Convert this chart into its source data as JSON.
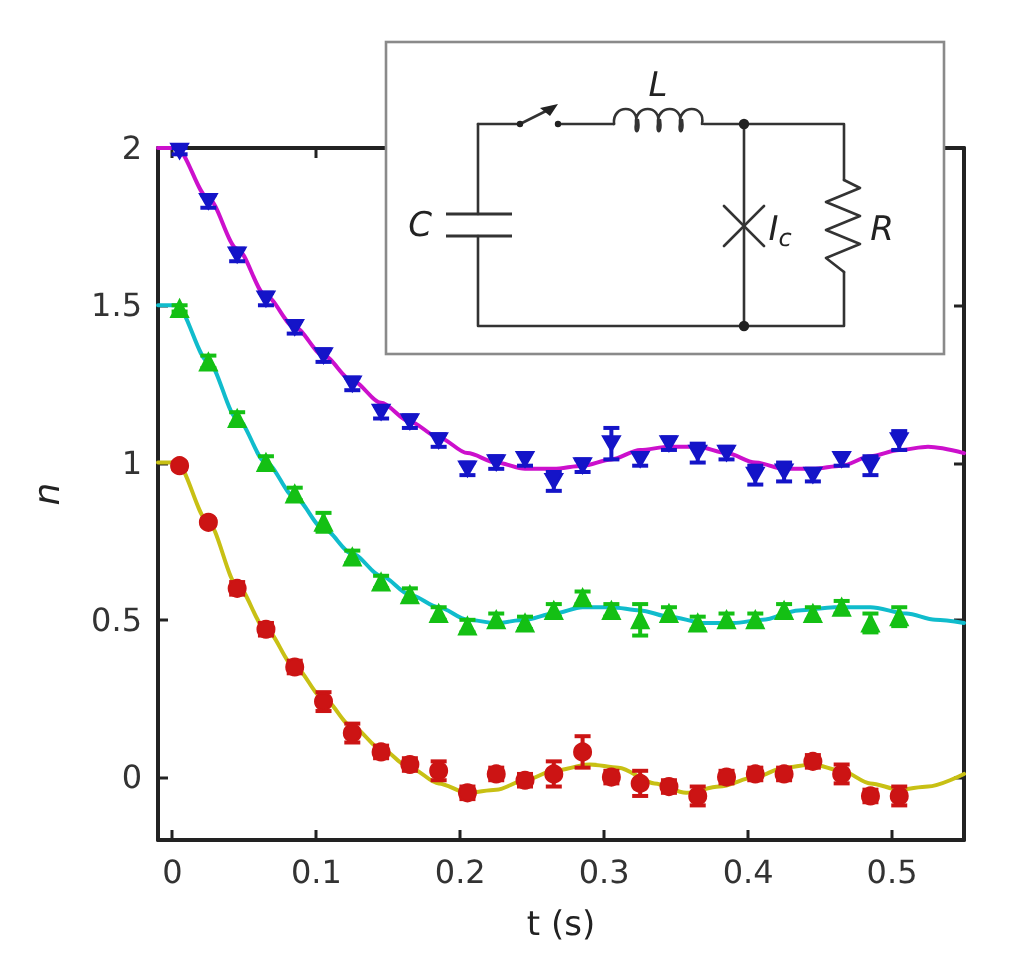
{
  "chart_data": {
    "type": "scatter",
    "xlabel": "t (s)",
    "ylabel": "n",
    "annotations": [
      "L",
      "C",
      "I$_{c}$",
      "R"
    ],
    "x": [
      0.005,
      0.025,
      0.045,
      0.065,
      0.085,
      0.105,
      0.125,
      0.145,
      0.165,
      0.185,
      0.205,
      0.225,
      0.245,
      0.265,
      0.285,
      0.305,
      0.325,
      0.345,
      0.365,
      0.385,
      0.405,
      0.425,
      0.445,
      0.465,
      0.485,
      0.505
    ],
    "xlim": [
      -0.01,
      0.55
    ],
    "xticks": [
      0,
      0.1,
      0.2,
      0.3,
      0.4,
      0.5
    ],
    "ylim": [
      -0.2,
      2
    ],
    "yticks": [
      0,
      0.5,
      1,
      1.5,
      2
    ],
    "series": [
      {
        "marker": "triangle-down",
        "color": "#1414c8",
        "values": [
          1.99,
          1.83,
          1.66,
          1.52,
          1.43,
          1.34,
          1.25,
          1.16,
          1.13,
          1.07,
          0.98,
          1.0,
          1.01,
          0.94,
          0.99,
          1.06,
          1.01,
          1.06,
          1.03,
          1.03,
          0.96,
          0.97,
          0.96,
          1.01,
          0.99,
          1.07
        ],
        "errors": [
          0.01,
          0.02,
          0.02,
          0.02,
          0.02,
          0.02,
          0.02,
          0.02,
          0.02,
          0.02,
          0.02,
          0.02,
          0.02,
          0.03,
          0.02,
          0.05,
          0.02,
          0.02,
          0.03,
          0.02,
          0.03,
          0.03,
          0.02,
          0.02,
          0.03,
          0.03
        ]
      },
      {
        "type": "line",
        "marker": "none",
        "line_style": "solid",
        "color": "#cc10cc",
        "x": [
          -0.01,
          0.003,
          0.025,
          0.045,
          0.065,
          0.085,
          0.105,
          0.125,
          0.145,
          0.165,
          0.185,
          0.205,
          0.225,
          0.245,
          0.265,
          0.285,
          0.305,
          0.325,
          0.345,
          0.365,
          0.385,
          0.405,
          0.425,
          0.445,
          0.465,
          0.485,
          0.505,
          0.525,
          0.55
        ],
        "values": [
          2.0,
          2.0,
          1.84,
          1.68,
          1.53,
          1.43,
          1.34,
          1.26,
          1.19,
          1.13,
          1.08,
          1.03,
          1.0,
          0.98,
          0.98,
          0.99,
          1.01,
          1.04,
          1.05,
          1.05,
          1.03,
          1.0,
          0.98,
          0.98,
          0.99,
          1.02,
          1.04,
          1.05,
          1.03
        ]
      },
      {
        "marker": "triangle",
        "color": "#14c014",
        "values": [
          1.49,
          1.32,
          1.14,
          1.0,
          0.9,
          0.81,
          0.7,
          0.62,
          0.58,
          0.52,
          0.48,
          0.5,
          0.49,
          0.53,
          0.57,
          0.53,
          0.5,
          0.52,
          0.49,
          0.5,
          0.5,
          0.53,
          0.52,
          0.54,
          0.49,
          0.51
        ],
        "errors": [
          0.01,
          0.02,
          0.02,
          0.02,
          0.02,
          0.03,
          0.02,
          0.02,
          0.02,
          0.02,
          0.02,
          0.02,
          0.02,
          0.02,
          0.02,
          0.02,
          0.05,
          0.02,
          0.02,
          0.02,
          0.02,
          0.02,
          0.02,
          0.02,
          0.03,
          0.03
        ]
      },
      {
        "type": "line",
        "marker": "none",
        "line_style": "solid",
        "color": "#10bccc",
        "x": [
          -0.01,
          0.003,
          0.025,
          0.045,
          0.065,
          0.085,
          0.105,
          0.125,
          0.145,
          0.165,
          0.185,
          0.205,
          0.225,
          0.245,
          0.265,
          0.285,
          0.305,
          0.325,
          0.345,
          0.37,
          0.39,
          0.41,
          0.435,
          0.46,
          0.485,
          0.51,
          0.53,
          0.55
        ],
        "values": [
          1.5,
          1.5,
          1.32,
          1.14,
          1.0,
          0.89,
          0.79,
          0.71,
          0.64,
          0.58,
          0.54,
          0.5,
          0.49,
          0.5,
          0.52,
          0.54,
          0.54,
          0.53,
          0.51,
          0.49,
          0.49,
          0.5,
          0.53,
          0.54,
          0.54,
          0.52,
          0.5,
          0.49
        ]
      },
      {
        "marker": "circle",
        "color": "#cc1414",
        "values": [
          0.99,
          0.81,
          0.6,
          0.47,
          0.35,
          0.24,
          0.14,
          0.08,
          0.04,
          0.02,
          -0.05,
          0.01,
          -0.01,
          0.01,
          0.08,
          0.0,
          -0.02,
          -0.03,
          -0.06,
          0.0,
          0.01,
          0.01,
          0.05,
          0.01,
          -0.06,
          -0.06
        ],
        "errors": [
          0.01,
          0.01,
          0.02,
          0.02,
          0.02,
          0.03,
          0.03,
          0.02,
          0.02,
          0.03,
          0.02,
          0.02,
          0.02,
          0.04,
          0.05,
          0.02,
          0.04,
          0.02,
          0.03,
          0.02,
          0.02,
          0.02,
          0.02,
          0.03,
          0.02,
          0.03
        ]
      },
      {
        "type": "line",
        "marker": "none",
        "line_style": "solid",
        "color": "#c8c014",
        "x": [
          -0.01,
          0.003,
          0.025,
          0.045,
          0.065,
          0.085,
          0.105,
          0.125,
          0.145,
          0.165,
          0.185,
          0.205,
          0.225,
          0.245,
          0.265,
          0.29,
          0.31,
          0.335,
          0.357,
          0.38,
          0.405,
          0.425,
          0.445,
          0.465,
          0.485,
          0.505,
          0.525,
          0.55
        ],
        "values": [
          1.0,
          1.0,
          0.81,
          0.61,
          0.47,
          0.35,
          0.25,
          0.16,
          0.09,
          0.03,
          -0.02,
          -0.05,
          -0.04,
          -0.01,
          0.02,
          0.04,
          0.03,
          -0.02,
          -0.05,
          -0.03,
          0.0,
          0.03,
          0.04,
          0.02,
          -0.02,
          -0.04,
          -0.03,
          0.01
        ]
      }
    ]
  }
}
